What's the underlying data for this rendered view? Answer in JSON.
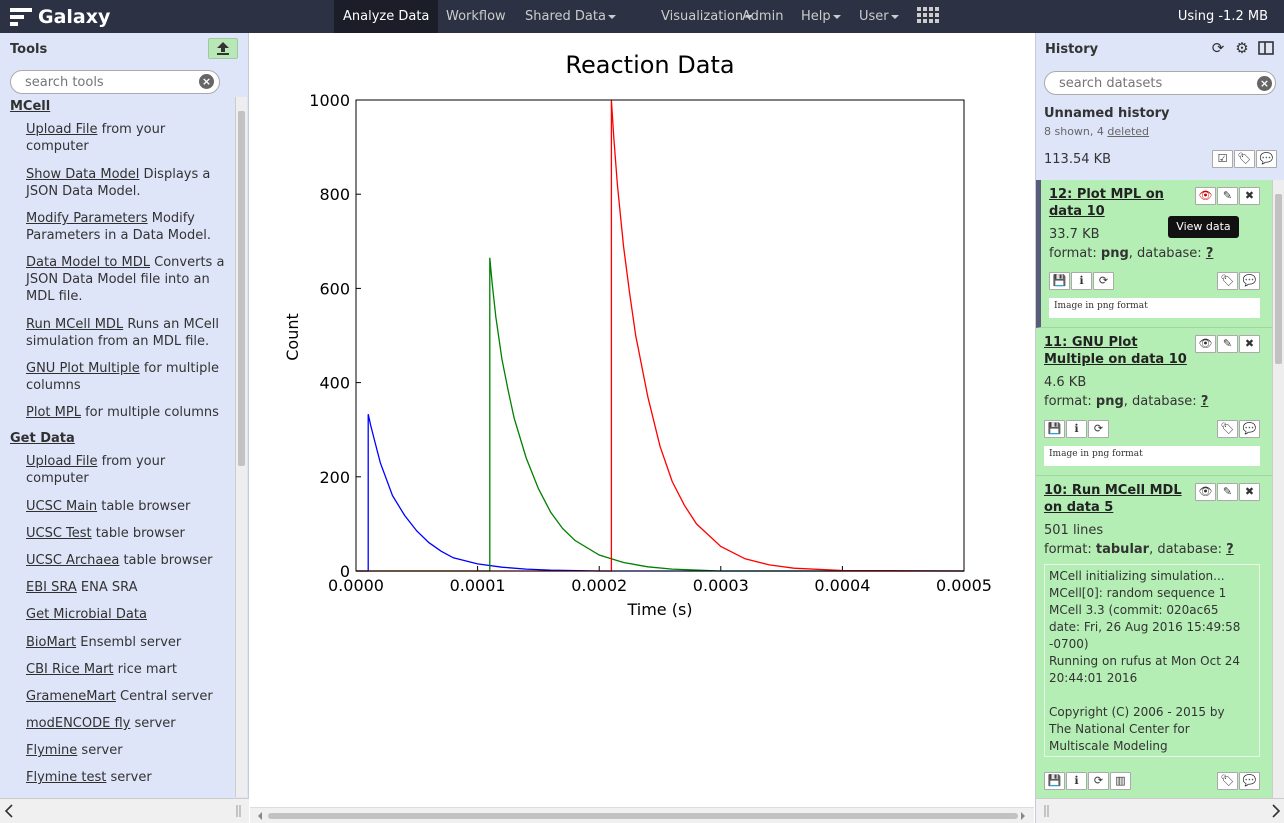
{
  "masthead": {
    "brand": "Galaxy",
    "nav": [
      {
        "label": "Analyze Data",
        "active": true
      },
      {
        "label": "Workflow"
      },
      {
        "label": "Shared Data",
        "dropdown": true
      },
      {
        "label": "Visualization",
        "dropdown": true
      },
      {
        "label": "Admin"
      },
      {
        "label": "Help",
        "dropdown": true
      },
      {
        "label": "User",
        "dropdown": true
      }
    ],
    "quota": "Using -1.2 MB"
  },
  "tools": {
    "title": "Tools",
    "search_placeholder": "search tools",
    "sections": [
      {
        "name": "MCell",
        "items": [
          {
            "link": "Upload File",
            "desc": " from your computer"
          },
          {
            "link": "Show Data Model",
            "desc": " Displays a JSON Data Model."
          },
          {
            "link": "Modify Parameters",
            "desc": " Modify Parameters in a Data Model."
          },
          {
            "link": "Data Model to MDL",
            "desc": " Converts a JSON Data Model file into an MDL file."
          },
          {
            "link": "Run MCell MDL",
            "desc": " Runs an MCell simulation from an MDL file."
          },
          {
            "link": "GNU Plot Multiple",
            "desc": " for multiple columns"
          },
          {
            "link": "Plot MPL",
            "desc": " for multiple columns"
          }
        ]
      },
      {
        "name": "Get Data",
        "items": [
          {
            "link": "Upload File",
            "desc": " from your computer"
          },
          {
            "link": "UCSC Main",
            "desc": " table browser"
          },
          {
            "link": "UCSC Test",
            "desc": " table browser"
          },
          {
            "link": "UCSC Archaea",
            "desc": " table browser"
          },
          {
            "link": "EBI SRA",
            "desc": " ENA SRA"
          },
          {
            "link": "Get Microbial Data",
            "desc": ""
          },
          {
            "link": "BioMart",
            "desc": " Ensembl server"
          },
          {
            "link": "CBI Rice Mart",
            "desc": " rice mart"
          },
          {
            "link": "GrameneMart",
            "desc": " Central server"
          },
          {
            "link": "modENCODE fly",
            "desc": " server"
          },
          {
            "link": "Flymine",
            "desc": " server"
          },
          {
            "link": "Flymine test",
            "desc": " server"
          }
        ]
      }
    ]
  },
  "chart_data": {
    "type": "line",
    "title": "Reaction Data",
    "xlabel": "Time (s)",
    "ylabel": "Count",
    "xlim": [
      0,
      0.0005
    ],
    "ylim": [
      0,
      1000
    ],
    "xticks": [
      "0.0000",
      "0.0001",
      "0.0002",
      "0.0003",
      "0.0004",
      "0.0005"
    ],
    "yticks": [
      "0",
      "200",
      "400",
      "600",
      "800",
      "1000"
    ],
    "series": [
      {
        "color": "#0000ff",
        "x": [
          0.0,
          1e-05,
          1e-05,
          1.2e-05,
          1.5e-05,
          2e-05,
          2.5e-05,
          3e-05,
          4e-05,
          5e-05,
          6e-05,
          7e-05,
          8e-05,
          0.0001,
          0.00012,
          0.00014,
          0.00016,
          0.0002,
          0.0005
        ],
        "y": [
          0,
          0,
          333,
          310,
          280,
          230,
          195,
          160,
          118,
          85,
          60,
          42,
          28,
          15,
          8,
          4,
          2,
          0,
          0
        ]
      },
      {
        "color": "#007f00",
        "x": [
          0.0,
          0.00011,
          0.00011,
          0.000112,
          0.000115,
          0.00012,
          0.000125,
          0.00013,
          0.00014,
          0.00015,
          0.00016,
          0.00017,
          0.00018,
          0.0002,
          0.00022,
          0.00024,
          0.00026,
          0.0003,
          0.0005
        ],
        "y": [
          0,
          0,
          665,
          610,
          540,
          450,
          385,
          325,
          240,
          175,
          125,
          90,
          65,
          34,
          18,
          9,
          4,
          0,
          0
        ]
      },
      {
        "color": "#ff0000",
        "x": [
          0.0,
          0.00021,
          0.00021,
          0.000212,
          0.000215,
          0.00022,
          0.000225,
          0.00023,
          0.00024,
          0.00025,
          0.00026,
          0.00027,
          0.00028,
          0.0003,
          0.00032,
          0.00034,
          0.00036,
          0.0004,
          0.0005
        ],
        "y": [
          0,
          0,
          1000,
          920,
          820,
          690,
          590,
          500,
          370,
          265,
          190,
          140,
          100,
          52,
          26,
          13,
          6,
          1,
          0
        ]
      }
    ]
  },
  "history": {
    "title": "History",
    "search_placeholder": "search datasets",
    "name": "Unnamed history",
    "shown": "8 shown, 4 ",
    "deleted": "deleted",
    "size": "113.54 KB",
    "tooltip": "View data",
    "datasets": [
      {
        "title_l1": "12: Plot MPL on",
        "title_l2": "data 10",
        "size": "33.7 KB",
        "format": "png",
        "database": "?",
        "peek": "Image in png format"
      },
      {
        "title_l1": "11: GNU Plot",
        "title_l2": "Multiple on data 10",
        "size": "4.6 KB",
        "format": "png",
        "database": "?",
        "peek": "Image in png format"
      },
      {
        "title_l1": "10: Run MCell MDL",
        "title_l2": "on data 5",
        "size": "501 lines",
        "format": "tabular",
        "database": "?",
        "peek_lines": [
          "MCell initializing simulation...",
          "MCell[0]: random sequence 1",
          "MCell 3.3 (commit: 020ac65",
          "date: Fri, 26 Aug 2016 15:49:58",
          "-0700)",
          "Running on rufus at Mon Oct 24",
          "20:44:01 2016",
          "",
          "Copyright (C) 2006 - 2015 by",
          "The National Center for",
          "Multiscale Modeling"
        ]
      }
    ],
    "format_label": "format: ",
    "database_label": ", database: "
  }
}
